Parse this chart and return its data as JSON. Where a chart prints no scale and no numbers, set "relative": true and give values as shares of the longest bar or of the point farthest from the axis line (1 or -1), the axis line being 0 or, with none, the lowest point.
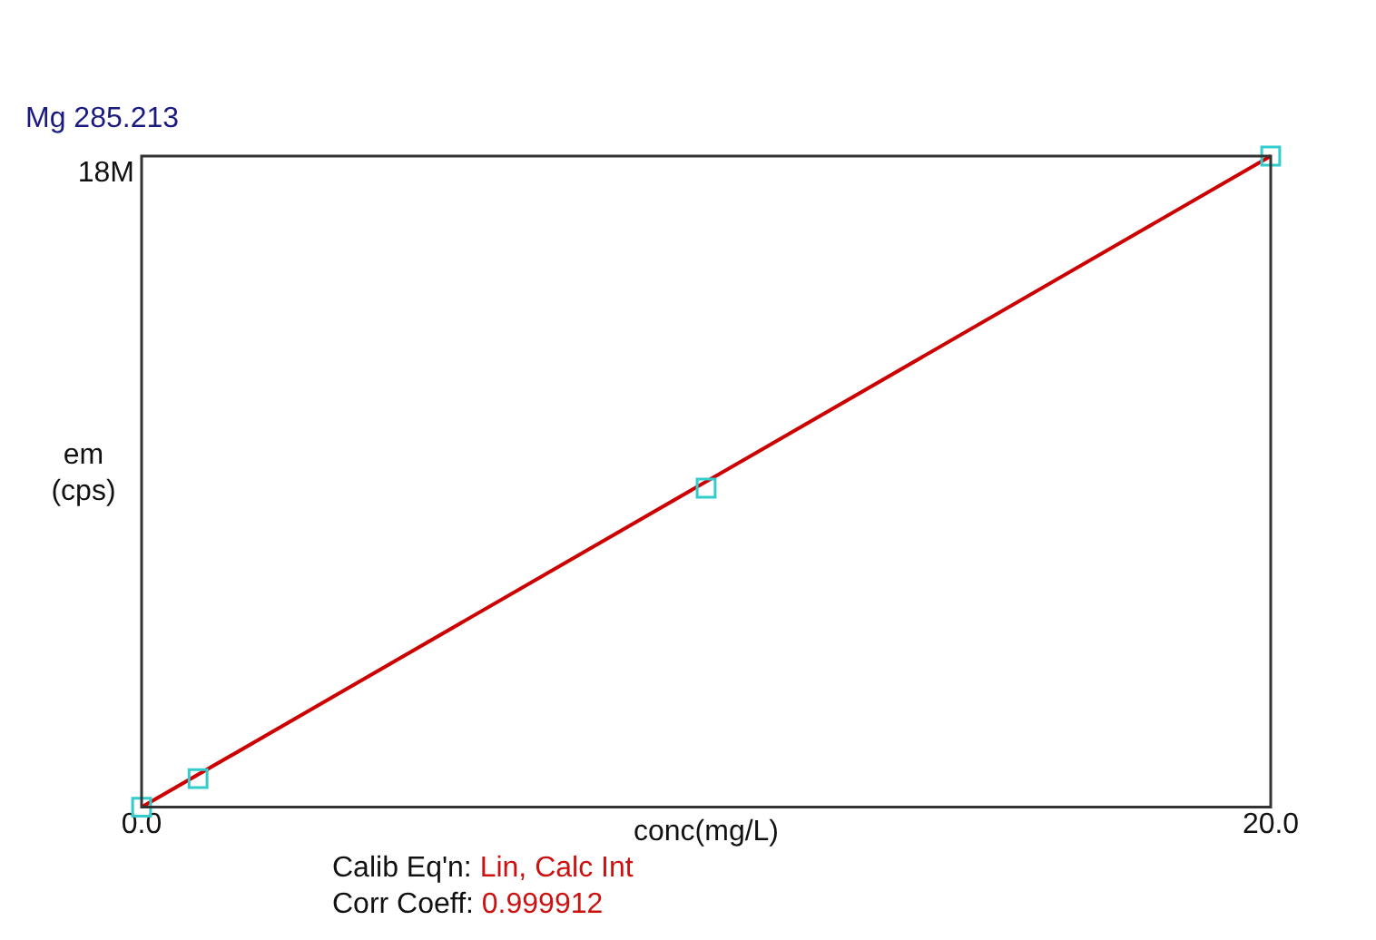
{
  "chart_data": {
    "type": "scatter",
    "title": "Mg 285.213",
    "xlabel": "conc(mg/L)",
    "ylabel": "em\n(cps)",
    "relative": true,
    "xlim": [
      0,
      20
    ],
    "xticks": [
      {
        "value": 0,
        "label": "0.0"
      },
      {
        "value": 20,
        "label": "20.0"
      }
    ],
    "legend": false,
    "tick_labels": "x",
    "annotations": [
      "18M",
      "Calib Eq'n: Lin, Calc Int",
      "Corr Coeff: 0.999912"
    ],
    "series": [
      {
        "color": "#33cccc",
        "marker": "square",
        "x": [
          0,
          1,
          10,
          20
        ],
        "values": [
          0,
          0.044,
          0.49,
          1
        ]
      },
      {
        "type": "line",
        "color": "#cc0000",
        "marker": "none",
        "line_style": "solid",
        "x": [
          0,
          20
        ],
        "values": [
          0,
          1
        ]
      }
    ]
  }
}
